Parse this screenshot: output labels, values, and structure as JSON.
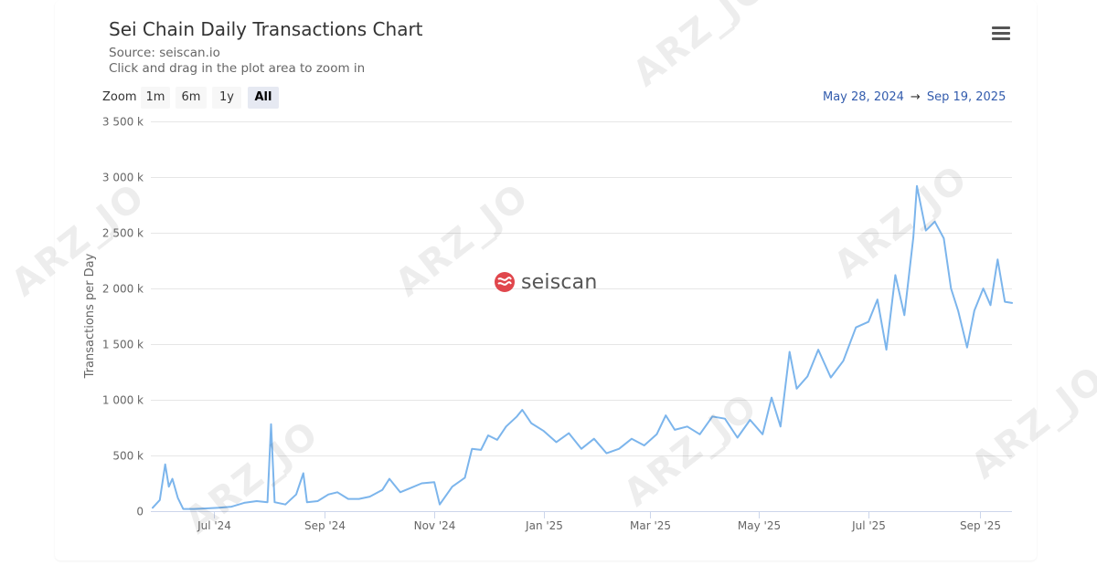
{
  "chart_data": {
    "type": "line",
    "title": "Sei Chain Daily Transactions Chart",
    "subtitle_source": "Source: seiscan.io",
    "subtitle_hint": "Click and drag in the plot area to zoom in",
    "ylabel": "Transactions per Day",
    "ylim": [
      0,
      3500000
    ],
    "yticks": [
      {
        "value": 0,
        "label": "0"
      },
      {
        "value": 500000,
        "label": "500 k"
      },
      {
        "value": 1000000,
        "label": "1 000 k"
      },
      {
        "value": 1500000,
        "label": "1 500 k"
      },
      {
        "value": 2000000,
        "label": "2 000 k"
      },
      {
        "value": 2500000,
        "label": "2 500 k"
      },
      {
        "value": 3000000,
        "label": "3 000 k"
      },
      {
        "value": 3500000,
        "label": "3 500 k"
      }
    ],
    "xlim": [
      "2024-05-28",
      "2025-09-19"
    ],
    "xticks": [
      {
        "date": "2024-07-01",
        "label": "Jul '24"
      },
      {
        "date": "2024-09-01",
        "label": "Sep '24"
      },
      {
        "date": "2024-11-01",
        "label": "Nov '24"
      },
      {
        "date": "2025-01-01",
        "label": "Jan '25"
      },
      {
        "date": "2025-03-01",
        "label": "Mar '25"
      },
      {
        "date": "2025-05-01",
        "label": "May '25"
      },
      {
        "date": "2025-07-01",
        "label": "Jul '25"
      },
      {
        "date": "2025-09-01",
        "label": "Sep '25"
      }
    ],
    "grid": true,
    "legend": "none",
    "series": [
      {
        "color": "#7cb5ec",
        "points": [
          [
            "2024-05-28",
            30000
          ],
          [
            "2024-06-01",
            100000
          ],
          [
            "2024-06-04",
            420000
          ],
          [
            "2024-06-06",
            220000
          ],
          [
            "2024-06-08",
            290000
          ],
          [
            "2024-06-11",
            120000
          ],
          [
            "2024-06-14",
            20000
          ],
          [
            "2024-06-20",
            20000
          ],
          [
            "2024-06-27",
            25000
          ],
          [
            "2024-07-04",
            30000
          ],
          [
            "2024-07-11",
            40000
          ],
          [
            "2024-07-18",
            75000
          ],
          [
            "2024-07-25",
            90000
          ],
          [
            "2024-07-31",
            80000
          ],
          [
            "2024-08-02",
            780000
          ],
          [
            "2024-08-04",
            80000
          ],
          [
            "2024-08-10",
            60000
          ],
          [
            "2024-08-16",
            150000
          ],
          [
            "2024-08-20",
            340000
          ],
          [
            "2024-08-22",
            80000
          ],
          [
            "2024-08-28",
            90000
          ],
          [
            "2024-09-03",
            150000
          ],
          [
            "2024-09-08",
            170000
          ],
          [
            "2024-09-14",
            110000
          ],
          [
            "2024-09-20",
            110000
          ],
          [
            "2024-09-26",
            130000
          ],
          [
            "2024-10-03",
            190000
          ],
          [
            "2024-10-07",
            290000
          ],
          [
            "2024-10-13",
            170000
          ],
          [
            "2024-10-19",
            210000
          ],
          [
            "2024-10-25",
            250000
          ],
          [
            "2024-11-01",
            260000
          ],
          [
            "2024-11-04",
            60000
          ],
          [
            "2024-11-11",
            220000
          ],
          [
            "2024-11-18",
            300000
          ],
          [
            "2024-11-22",
            560000
          ],
          [
            "2024-11-27",
            550000
          ],
          [
            "2024-12-01",
            680000
          ],
          [
            "2024-12-06",
            640000
          ],
          [
            "2024-12-11",
            760000
          ],
          [
            "2024-12-17",
            850000
          ],
          [
            "2024-12-20",
            910000
          ],
          [
            "2024-12-25",
            790000
          ],
          [
            "2025-01-01",
            720000
          ],
          [
            "2025-01-08",
            620000
          ],
          [
            "2025-01-15",
            700000
          ],
          [
            "2025-01-22",
            560000
          ],
          [
            "2025-01-29",
            650000
          ],
          [
            "2025-02-05",
            520000
          ],
          [
            "2025-02-12",
            560000
          ],
          [
            "2025-02-19",
            650000
          ],
          [
            "2025-02-26",
            590000
          ],
          [
            "2025-03-05",
            690000
          ],
          [
            "2025-03-10",
            860000
          ],
          [
            "2025-03-15",
            730000
          ],
          [
            "2025-03-22",
            760000
          ],
          [
            "2025-03-29",
            690000
          ],
          [
            "2025-04-05",
            850000
          ],
          [
            "2025-04-12",
            830000
          ],
          [
            "2025-04-19",
            660000
          ],
          [
            "2025-04-26",
            820000
          ],
          [
            "2025-05-03",
            690000
          ],
          [
            "2025-05-08",
            1020000
          ],
          [
            "2025-05-13",
            760000
          ],
          [
            "2025-05-18",
            1430000
          ],
          [
            "2025-05-22",
            1100000
          ],
          [
            "2025-05-28",
            1210000
          ],
          [
            "2025-06-03",
            1450000
          ],
          [
            "2025-06-10",
            1200000
          ],
          [
            "2025-06-17",
            1350000
          ],
          [
            "2025-06-24",
            1650000
          ],
          [
            "2025-07-01",
            1700000
          ],
          [
            "2025-07-06",
            1900000
          ],
          [
            "2025-07-11",
            1450000
          ],
          [
            "2025-07-16",
            2120000
          ],
          [
            "2025-07-21",
            1760000
          ],
          [
            "2025-07-26",
            2460000
          ],
          [
            "2025-07-28",
            2920000
          ],
          [
            "2025-08-02",
            2520000
          ],
          [
            "2025-08-07",
            2600000
          ],
          [
            "2025-08-12",
            2450000
          ],
          [
            "2025-08-16",
            2000000
          ],
          [
            "2025-08-20",
            1800000
          ],
          [
            "2025-08-25",
            1470000
          ],
          [
            "2025-08-29",
            1800000
          ],
          [
            "2025-09-03",
            2000000
          ],
          [
            "2025-09-07",
            1850000
          ],
          [
            "2025-09-11",
            2260000
          ],
          [
            "2025-09-15",
            1880000
          ],
          [
            "2025-09-19",
            1870000
          ]
        ]
      }
    ]
  },
  "toolbar": {
    "zoom_label": "Zoom",
    "zoom_buttons": [
      "1m",
      "6m",
      "1y",
      "All"
    ],
    "active_zoom": "All",
    "range_from": "May 28, 2024",
    "range_arrow": "→",
    "range_to": "Sep 19, 2025",
    "menu_icon": "hamburger-menu-icon"
  },
  "branding": {
    "logo_icon": "seiscan-logo-icon",
    "logo_text": "seiscan",
    "logo_color": "#e0464c"
  },
  "watermark": {
    "text": "ARZ_JO"
  }
}
